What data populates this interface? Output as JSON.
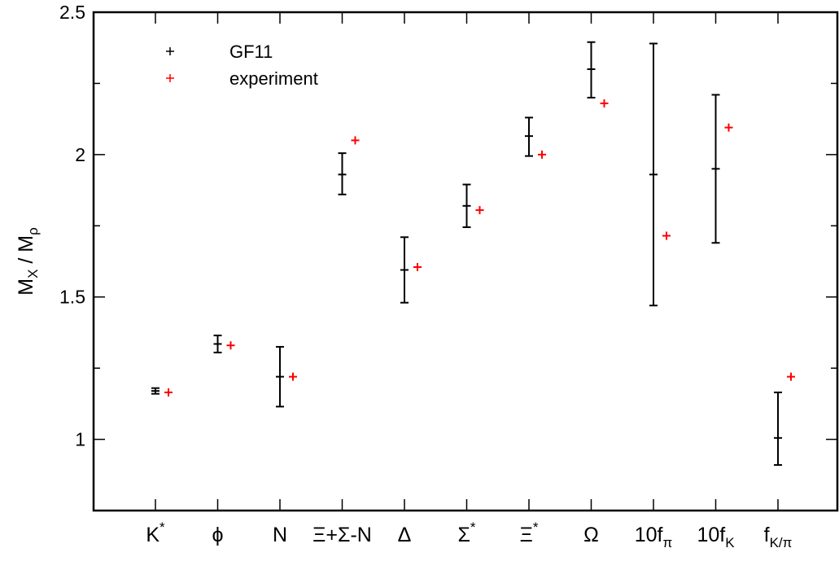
{
  "chart_data": {
    "type": "scatter",
    "ylabel_main": "M",
    "ylabel_sub1": "X",
    "ylabel_mid": " / M",
    "ylabel_sub2": "ρ",
    "ylim": [
      0.75,
      2.5
    ],
    "yticks": [
      1,
      1.5,
      2,
      2.5
    ],
    "ytick_labels": [
      "1",
      "1.5",
      "2",
      "2.5"
    ],
    "categories": [
      {
        "base": "K",
        "sup": "*",
        "sub": ""
      },
      {
        "base": "ϕ",
        "sup": "",
        "sub": ""
      },
      {
        "base": "N",
        "sup": "",
        "sub": ""
      },
      {
        "base": "Ξ+Σ-N",
        "sup": "",
        "sub": ""
      },
      {
        "base": "Δ",
        "sup": "",
        "sub": ""
      },
      {
        "base": "Σ",
        "sup": "*",
        "sub": ""
      },
      {
        "base": "Ξ",
        "sup": "*",
        "sub": ""
      },
      {
        "base": "Ω",
        "sup": "",
        "sub": ""
      },
      {
        "base": "10f",
        "sup": "",
        "sub": "π"
      },
      {
        "base": "10f",
        "sup": "",
        "sub": "K"
      },
      {
        "base": "f",
        "sup": "",
        "sub": "K/π"
      }
    ],
    "series": [
      {
        "name": "GF11",
        "color": "#000000",
        "values": [
          1.17,
          1.335,
          1.22,
          1.93,
          1.595,
          1.82,
          2.065,
          2.3,
          1.93,
          1.95,
          1.005
        ],
        "err_low": [
          1.16,
          1.305,
          1.115,
          1.86,
          1.48,
          1.745,
          1.995,
          2.2,
          1.47,
          1.69,
          0.91
        ],
        "err_high": [
          1.18,
          1.365,
          1.325,
          2.005,
          1.71,
          1.895,
          2.13,
          2.395,
          2.39,
          2.21,
          1.165
        ]
      },
      {
        "name": "experiment",
        "color": "#ff0000",
        "values": [
          1.165,
          1.33,
          1.22,
          2.05,
          1.605,
          1.805,
          2.0,
          2.18,
          1.715,
          2.095,
          1.22
        ]
      }
    ],
    "legend_position": "top-left"
  }
}
